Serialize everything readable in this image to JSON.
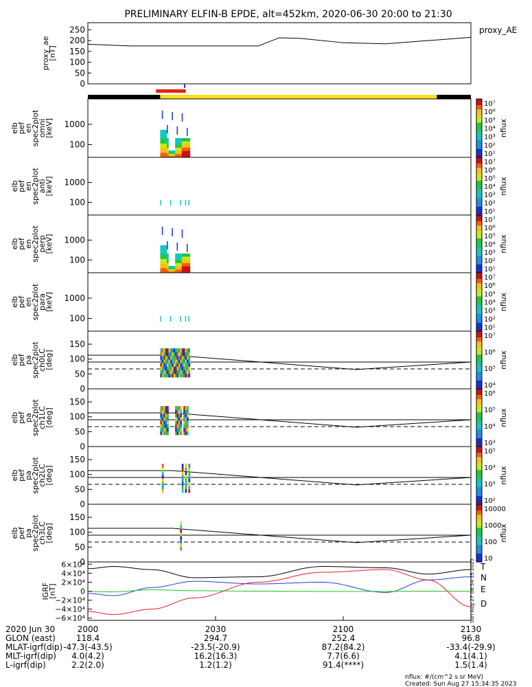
{
  "title": "PRELIMINARY ELFIN-B EPDE, alt=452km, 2020-06-30 20:00 to 21:30",
  "colors": {
    "black": "#000000",
    "red": "#e8201a",
    "yellow": "#f5e21a",
    "ae_line": "#000000",
    "grf_T": "#000000",
    "grf_N": "#1f3fd8",
    "grf_E": "#22c022",
    "grf_D": "#e02020"
  },
  "panels": [
    {
      "key": "ae",
      "ylabel": [
        "proxy_ae",
        "[nT]"
      ],
      "yticks": [
        "250",
        "200",
        "150",
        "100",
        "50",
        "0"
      ],
      "right_label": "proxy_AE"
    },
    {
      "key": "omni",
      "ylabel": [
        "elb",
        "pef",
        "en",
        "spec2plot",
        "omni",
        "[keV]"
      ],
      "yticks": [
        "1000",
        "100"
      ],
      "cbar_ticks": [
        "10⁷",
        "10⁶",
        "10⁵",
        "10⁴",
        "10³",
        "10²",
        "10¹"
      ],
      "cbar_label": "nflux"
    },
    {
      "key": "anti",
      "ylabel": [
        "elb",
        "pef",
        "en",
        "spec2plot",
        "anti",
        "[keV]"
      ],
      "yticks": [
        "1000",
        "100"
      ],
      "cbar_ticks": [
        "10⁷",
        "10⁶",
        "10⁵",
        "10⁴",
        "10³",
        "10²",
        "10¹"
      ],
      "cbar_label": "nflux"
    },
    {
      "key": "perp",
      "ylabel": [
        "elb",
        "pef",
        "en",
        "spec2plot",
        "perp",
        "[keV]"
      ],
      "yticks": [
        "1000",
        "100"
      ],
      "cbar_ticks": [
        "10⁷",
        "10⁶",
        "10⁵",
        "10⁴",
        "10³",
        "10²",
        "10¹"
      ],
      "cbar_label": "nflux"
    },
    {
      "key": "para",
      "ylabel": [
        "elb",
        "pef",
        "en",
        "spec2plot",
        "para",
        "[keV]"
      ],
      "yticks": [
        "1000",
        "100"
      ],
      "cbar_ticks": [
        "10⁷",
        "10⁶",
        "10⁵",
        "10⁴",
        "10³",
        "10²",
        "10¹"
      ],
      "cbar_label": "nflux"
    },
    {
      "key": "ch0",
      "ylabel": [
        "elb",
        "pef",
        "pa",
        "spec2plot",
        "ch0LC",
        "[deg]"
      ],
      "yticks": [
        "150",
        "100",
        "50",
        "0"
      ],
      "cbar_ticks": [
        "10⁷",
        "10⁶",
        "10⁵",
        "10⁴"
      ],
      "cbar_label": "nflux"
    },
    {
      "key": "ch1",
      "ylabel": [
        "elb",
        "pef",
        "pa",
        "spec2plot",
        "ch1LC",
        "[deg]"
      ],
      "yticks": [
        "150",
        "100",
        "50",
        "0"
      ],
      "cbar_ticks": [
        "10⁶",
        "10⁵",
        "10⁴",
        "10³"
      ],
      "cbar_label": "nflux"
    },
    {
      "key": "ch2",
      "ylabel": [
        "elb",
        "pef",
        "pa",
        "spec2plot",
        "ch2LC",
        "[deg]"
      ],
      "yticks": [
        "150",
        "100",
        "50",
        "0"
      ],
      "cbar_ticks": [
        "10⁵",
        "10⁴",
        "10³",
        "10²"
      ],
      "cbar_label": "nflux"
    },
    {
      "key": "ch3",
      "ylabel": [
        "elb",
        "pef",
        "pa",
        "spec2plot",
        "ch3LC",
        "[deg]"
      ],
      "yticks": [
        "150",
        "100",
        "50",
        "0"
      ],
      "cbar_ticks": [
        "10000",
        "1000",
        "100",
        "10"
      ],
      "cbar_label": "nflux"
    },
    {
      "key": "grf",
      "ylabel": [
        "IGRF",
        "[nT]"
      ],
      "yticks": [
        "6×10⁴",
        "4×10⁴",
        "2×10⁴",
        "0",
        "−2×10⁴",
        "−4×10⁴",
        "−6×10⁴"
      ],
      "legend": [
        "T",
        "N",
        "E",
        "D"
      ]
    }
  ],
  "timeline": {
    "ticks": [
      "2000",
      "2030",
      "2100",
      "2130"
    ]
  },
  "footer": {
    "rows": [
      {
        "label": "2020 Jun 30",
        "values": [
          "2000",
          "2030",
          "2100",
          "2130"
        ]
      },
      {
        "label": "GLON (east)",
        "values": [
          "118.4",
          "294.7",
          "252.4",
          "96.8"
        ]
      },
      {
        "label": "MLAT-igrf(dip)",
        "values": [
          "-47.3(-43.5)",
          "-23.5(-20.9)",
          "87.2(84.2)",
          "-33.4(-29.9)"
        ]
      },
      {
        "label": "MLT-igrf(dip)",
        "values": [
          "4.0(4.2)",
          "16.2(16.3)",
          "7.7(6.6)",
          "4.1(4.1)"
        ]
      },
      {
        "label": "L-igrf(dip)",
        "values": [
          "2.2(2.0)",
          "1.2(1.2)",
          "91.4(****)",
          "1.5(1.4)"
        ]
      }
    ],
    "units_note": "nflux: #/(cm^2 s sr MeV)",
    "created": "Created: Sun Aug 27 15:34:35 2023",
    "side_stamp": "Sun Aug 27 08:34:35 2023"
  },
  "chart_data": [
    {
      "type": "line",
      "panel": "proxy_ae",
      "x_minutes_after_2000": [
        0,
        10,
        20,
        30,
        40,
        45,
        50,
        60,
        70,
        80,
        90
      ],
      "y": [
        183,
        175,
        175,
        175,
        175,
        213,
        210,
        190,
        185,
        200,
        215
      ],
      "ylim": [
        0,
        270
      ],
      "xlim": [
        "20:00",
        "21:30"
      ]
    },
    {
      "type": "table",
      "panel": "status_bar",
      "segments": [
        {
          "color": "black",
          "from": "20:00",
          "to": "20:17"
        },
        {
          "color": "yellow",
          "from": "20:17",
          "to": "21:22"
        },
        {
          "color": "black",
          "from": "21:22",
          "to": "21:30"
        },
        {
          "color": "red",
          "from": "20:16",
          "to": "20:23"
        }
      ]
    },
    {
      "type": "heatmap",
      "panel": "energy spectrograms (omni, anti, perp, para)",
      "active_interval": [
        "20:17",
        "20:24"
      ],
      "yrange_keV": [
        60,
        7000
      ],
      "scale": "log"
    },
    {
      "type": "line",
      "panel": "pitch angle (ch0LC-ch3LC)",
      "ylim": [
        0,
        180
      ],
      "ylabel": "deg",
      "x_minutes_after_2000": [
        0,
        20,
        60,
        90
      ],
      "upper_line": [
        113,
        113,
        65,
        90
      ],
      "middle_line": [
        90,
        90,
        90,
        90
      ],
      "dashed_line": [
        67,
        67,
        67,
        67
      ]
    },
    {
      "type": "line",
      "panel": "IGRF",
      "ylim": [
        -65000,
        65000
      ],
      "x_minutes_after_2000": [
        0,
        6,
        15,
        25,
        40,
        55,
        70,
        80,
        90
      ],
      "series": [
        {
          "name": "T",
          "values": [
            50000,
            55000,
            48000,
            30000,
            32000,
            55000,
            52000,
            38000,
            48000
          ]
        },
        {
          "name": "N",
          "values": [
            -5000,
            -10000,
            8000,
            22000,
            16000,
            20000,
            -3000,
            25000,
            32000
          ]
        },
        {
          "name": "E",
          "values": [
            -1000,
            -1500,
            3000,
            1000,
            0,
            -500,
            -500,
            0,
            0
          ]
        },
        {
          "name": "D",
          "values": [
            -45000,
            -52000,
            -40000,
            -15000,
            20000,
            42000,
            48000,
            25000,
            -35000
          ]
        }
      ]
    }
  ]
}
